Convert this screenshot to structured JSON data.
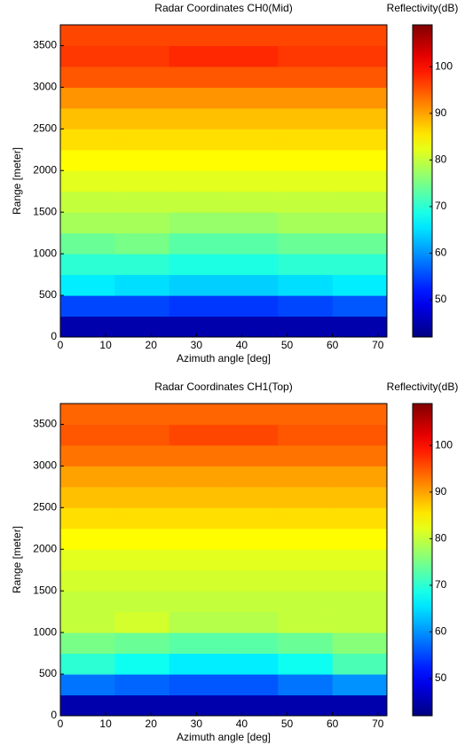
{
  "chart_data": [
    {
      "type": "heatmap",
      "title": "Radar Coordinates CH0(Mid)",
      "colorbar_label": "Reflectivity(dB)",
      "xlabel": "Azimuth angle [deg]",
      "ylabel": "Range [meter]",
      "colormap": "jet",
      "x_edges": [
        0,
        12,
        24,
        36,
        48,
        60,
        72
      ],
      "y_edges": [
        0,
        250,
        500,
        750,
        1000,
        1250,
        1500,
        1750,
        2000,
        2250,
        2500,
        2750,
        3000,
        3250,
        3500,
        3750
      ],
      "z": [
        [
          45,
          45,
          45,
          45,
          45,
          45
        ],
        [
          55,
          55,
          54,
          54,
          55,
          56
        ],
        [
          66,
          65,
          64,
          64,
          65,
          66
        ],
        [
          70,
          70,
          69,
          69,
          70,
          70
        ],
        [
          74,
          75,
          73,
          73,
          74,
          74
        ],
        [
          78,
          78,
          77,
          77,
          78,
          78
        ],
        [
          80,
          80,
          80,
          80,
          80,
          80
        ],
        [
          82,
          82,
          82,
          82,
          82,
          82
        ],
        [
          84,
          84,
          84,
          84,
          84,
          84
        ],
        [
          86,
          86,
          86,
          86,
          86,
          86
        ],
        [
          88,
          88,
          88,
          88,
          88,
          88
        ],
        [
          91,
          91,
          91,
          91,
          91,
          91
        ],
        [
          95,
          95,
          95,
          95,
          95,
          95
        ],
        [
          97,
          97,
          98,
          98,
          97,
          97
        ],
        [
          96,
          96,
          96,
          96,
          96,
          96
        ]
      ],
      "xlim": [
        0,
        72
      ],
      "ylim": [
        0,
        3750
      ],
      "xticks": [
        0,
        10,
        20,
        30,
        40,
        50,
        60,
        70
      ],
      "yticks": [
        0,
        500,
        1000,
        1500,
        2000,
        2500,
        3000,
        3500
      ],
      "clim": [
        42,
        109
      ],
      "cticks": [
        50,
        60,
        70,
        80,
        90,
        100
      ]
    },
    {
      "type": "heatmap",
      "title": "Radar Coordinates CH1(Top)",
      "colorbar_label": "Reflectivity(dB)",
      "xlabel": "Azimuth angle [deg]",
      "ylabel": "Range [meter]",
      "colormap": "jet",
      "x_edges": [
        0,
        12,
        24,
        36,
        48,
        60,
        72
      ],
      "y_edges": [
        0,
        250,
        500,
        750,
        1000,
        1250,
        1500,
        1750,
        2000,
        2250,
        2500,
        2750,
        3000,
        3250,
        3500,
        3750
      ],
      "z": [
        [
          45,
          45,
          45,
          45,
          45,
          45
        ],
        [
          58,
          57,
          56,
          56,
          58,
          60
        ],
        [
          70,
          68,
          66,
          66,
          68,
          72
        ],
        [
          75,
          74,
          73,
          73,
          74,
          76
        ],
        [
          80,
          81,
          79,
          79,
          80,
          80
        ],
        [
          80,
          80,
          80,
          80,
          80,
          80
        ],
        [
          81,
          81,
          81,
          81,
          81,
          81
        ],
        [
          82,
          82,
          82,
          82,
          82,
          82
        ],
        [
          84,
          84,
          84,
          84,
          84,
          84
        ],
        [
          86,
          86,
          86,
          86,
          86,
          86
        ],
        [
          88,
          88,
          88,
          88,
          88,
          88
        ],
        [
          90,
          90,
          90,
          90,
          90,
          90
        ],
        [
          93,
          93,
          93,
          93,
          93,
          93
        ],
        [
          95,
          95,
          96,
          96,
          95,
          95
        ],
        [
          94,
          94,
          94,
          94,
          94,
          94
        ]
      ],
      "xlim": [
        0,
        72
      ],
      "ylim": [
        0,
        3750
      ],
      "xticks": [
        0,
        10,
        20,
        30,
        40,
        50,
        60,
        70
      ],
      "yticks": [
        0,
        500,
        1000,
        1500,
        2000,
        2500,
        3000,
        3500
      ],
      "clim": [
        42,
        109
      ],
      "cticks": [
        50,
        60,
        70,
        80,
        90,
        100
      ]
    }
  ]
}
